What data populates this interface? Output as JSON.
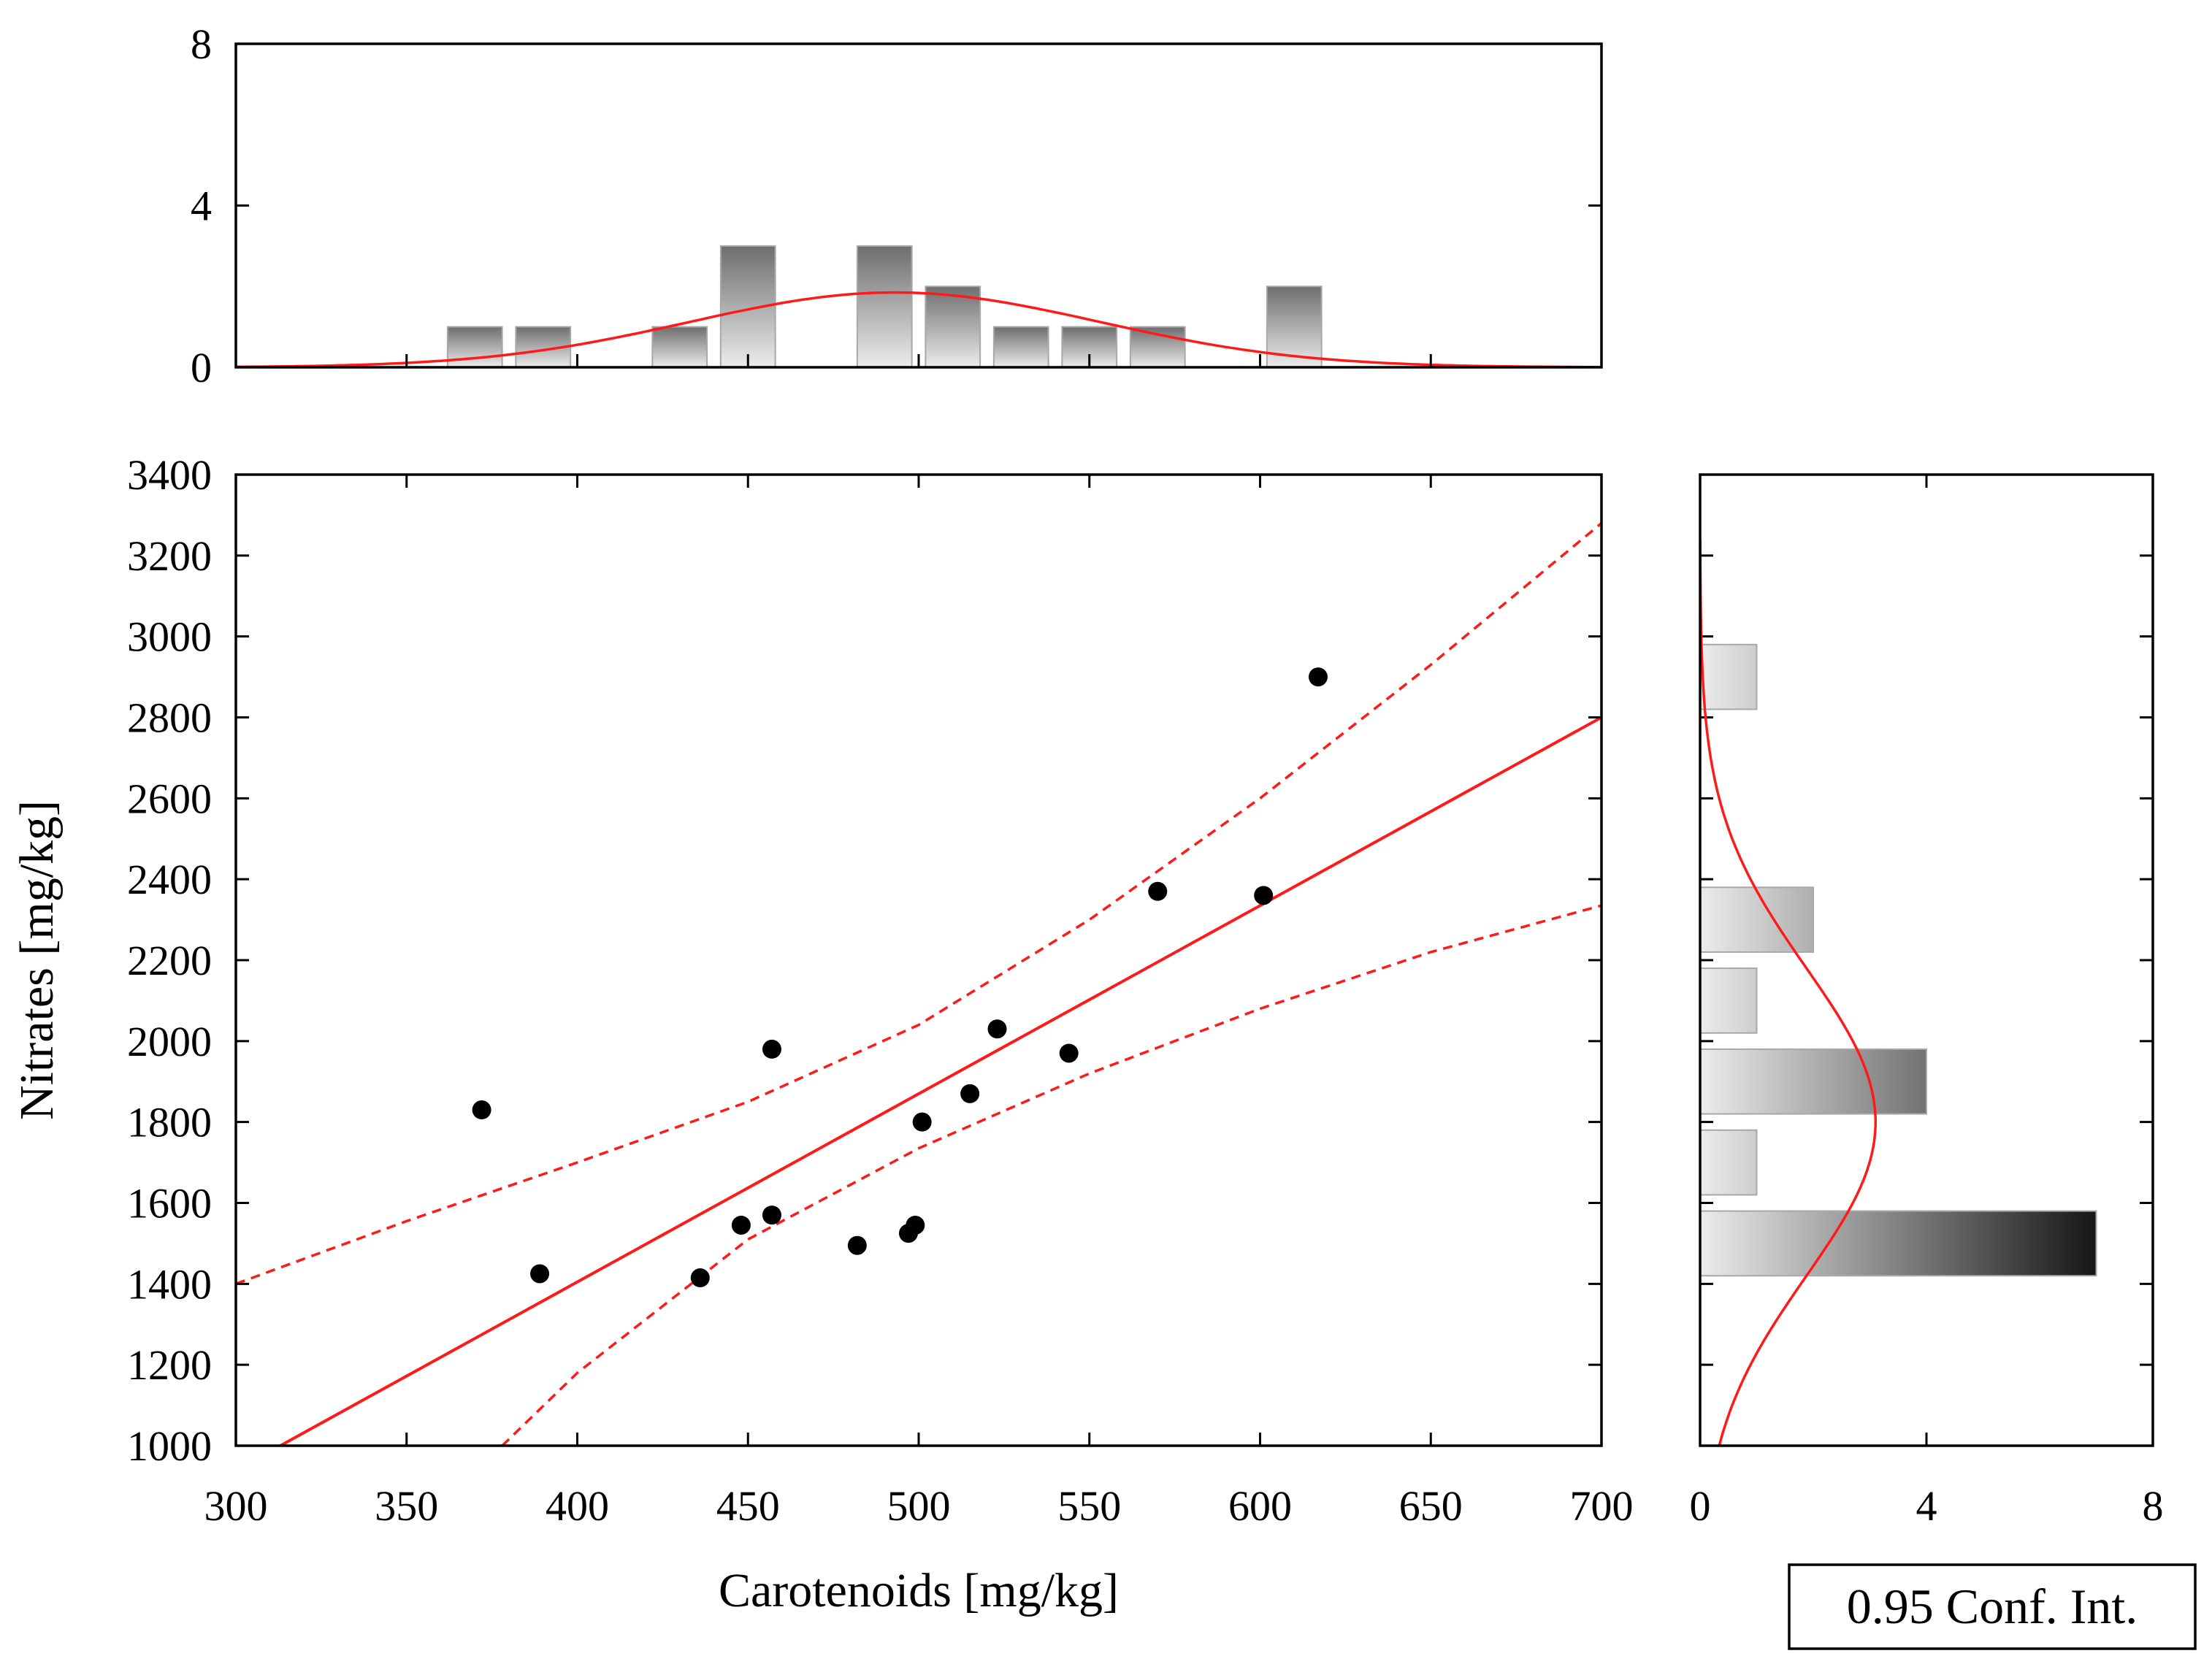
{
  "chart_data": {
    "type": "scatter",
    "x_label": "Carotenoids [mg/kg]",
    "y_label": "Nitrates [mg/kg]",
    "legend_text": "0.95 Conf. Int.",
    "x_range": [
      300,
      700
    ],
    "y_range": [
      1000,
      3400
    ],
    "x_ticks": [
      "300",
      "350",
      "400",
      "450",
      "500",
      "550",
      "600",
      "650",
      "700"
    ],
    "y_ticks": [
      "1000",
      "1200",
      "1400",
      "1600",
      "1800",
      "2000",
      "2200",
      "2400",
      "2600",
      "2800",
      "3000",
      "3200",
      "3400"
    ],
    "points": [
      {
        "x": 372,
        "y": 1830
      },
      {
        "x": 389,
        "y": 1425
      },
      {
        "x": 436,
        "y": 1415
      },
      {
        "x": 448,
        "y": 1545
      },
      {
        "x": 457,
        "y": 1570
      },
      {
        "x": 457,
        "y": 1980
      },
      {
        "x": 482,
        "y": 1495
      },
      {
        "x": 497,
        "y": 1525
      },
      {
        "x": 499,
        "y": 1545
      },
      {
        "x": 501,
        "y": 1800
      },
      {
        "x": 515,
        "y": 1870
      },
      {
        "x": 523,
        "y": 2030
      },
      {
        "x": 544,
        "y": 1970
      },
      {
        "x": 570,
        "y": 2370
      },
      {
        "x": 601,
        "y": 2360
      },
      {
        "x": 617,
        "y": 2900
      }
    ],
    "regression_line": {
      "x": [
        313,
        700
      ],
      "y": [
        1000,
        2800
      ]
    },
    "confidence_upper": {
      "x": [
        300,
        350,
        400,
        450,
        500,
        550,
        600,
        650,
        700
      ],
      "y": [
        1400,
        1555,
        1700,
        1850,
        2040,
        2300,
        2600,
        2930,
        3280
      ]
    },
    "confidence_lower": {
      "x": [
        378,
        400,
        450,
        500,
        550,
        600,
        650,
        700
      ],
      "y": [
        1000,
        1180,
        1510,
        1735,
        1920,
        2080,
        2220,
        2335
      ]
    },
    "top_histogram": {
      "y_range": [
        0,
        8
      ],
      "y_ticks": [
        "0",
        "4",
        "8"
      ],
      "bins": [
        {
          "x_start": 362,
          "x_end": 378,
          "count": 1
        },
        {
          "x_start": 382,
          "x_end": 398,
          "count": 1
        },
        {
          "x_start": 422,
          "x_end": 438,
          "count": 1
        },
        {
          "x_start": 442,
          "x_end": 458,
          "count": 3
        },
        {
          "x_start": 482,
          "x_end": 498,
          "count": 3
        },
        {
          "x_start": 502,
          "x_end": 518,
          "count": 2
        },
        {
          "x_start": 522,
          "x_end": 538,
          "count": 1
        },
        {
          "x_start": 542,
          "x_end": 558,
          "count": 1
        },
        {
          "x_start": 562,
          "x_end": 578,
          "count": 1
        },
        {
          "x_start": 602,
          "x_end": 618,
          "count": 2
        }
      ],
      "normal_curve": {
        "mean": 493,
        "sd": 60,
        "peak": 1.85
      }
    },
    "side_histogram": {
      "x_range": [
        0,
        8
      ],
      "x_ticks": [
        "0",
        "4",
        "8"
      ],
      "bins": [
        {
          "y_start": 1420,
          "y_end": 1580,
          "count": 7
        },
        {
          "y_start": 1620,
          "y_end": 1780,
          "count": 1
        },
        {
          "y_start": 1820,
          "y_end": 1980,
          "count": 4
        },
        {
          "y_start": 2020,
          "y_end": 2180,
          "count": 1
        },
        {
          "y_start": 2220,
          "y_end": 2380,
          "count": 2
        },
        {
          "y_start": 2820,
          "y_end": 2980,
          "count": 1
        }
      ],
      "normal_curve": {
        "mean": 1800,
        "sd": 380,
        "peak": 3.1
      }
    }
  }
}
